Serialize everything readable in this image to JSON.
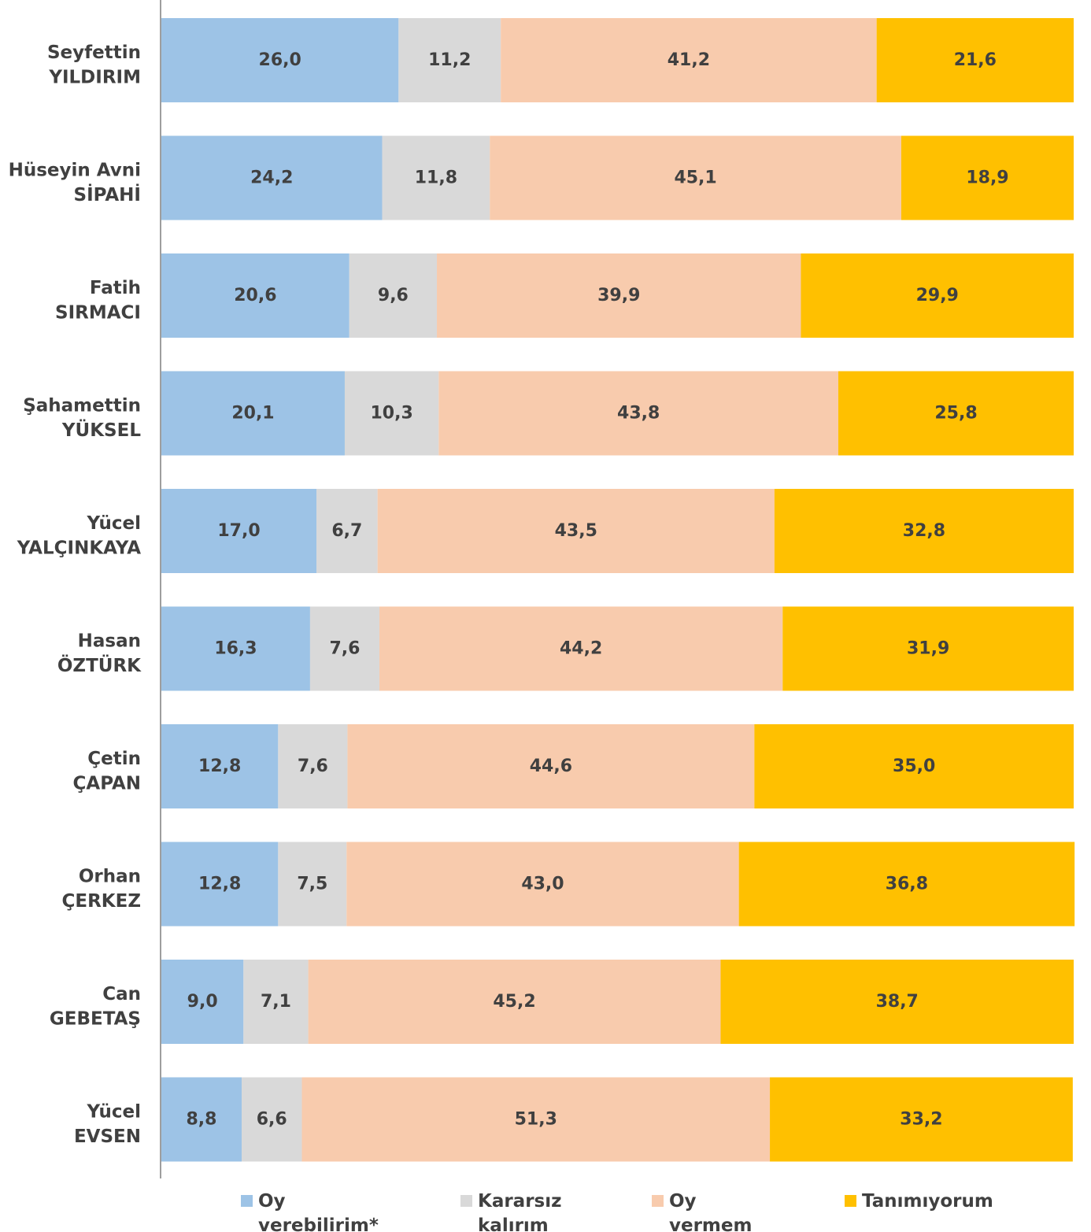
{
  "chart_data": {
    "type": "bar",
    "orientation": "horizontal",
    "stacked": true,
    "title": "",
    "xlabel": "",
    "ylabel": "",
    "xlim": [
      0,
      100
    ],
    "grid": false,
    "legend_position": "bottom",
    "categories": [
      [
        "Seyfettin",
        "YILDIRIM"
      ],
      [
        "Hüseyin Avni",
        "SİPAHİ"
      ],
      [
        "Fatih",
        "SIRMACI"
      ],
      [
        "Şahamettin",
        "YÜKSEL"
      ],
      [
        "Yücel",
        "YALÇINKAYA"
      ],
      [
        "Hasan",
        "ÖZTÜRK"
      ],
      [
        "Çetin",
        "ÇAPAN"
      ],
      [
        "Orhan",
        "ÇERKEZ"
      ],
      [
        "Can",
        "GEBETAŞ"
      ],
      [
        "Yücel",
        "EVSEN"
      ]
    ],
    "series": [
      {
        "name": [
          "Oy",
          "verebilirim*"
        ],
        "color": "#9DC3E6",
        "values": [
          26.0,
          24.2,
          20.6,
          20.1,
          17.0,
          16.3,
          12.8,
          12.8,
          9.0,
          8.8
        ],
        "labels": [
          "26,0",
          "24,2",
          "20,6",
          "20,1",
          "17,0",
          "16,3",
          "12,8",
          "12,8",
          "9,0",
          "8,8"
        ]
      },
      {
        "name": [
          "Kararsız",
          "kalırım"
        ],
        "color": "#D9D9D9",
        "values": [
          11.2,
          11.8,
          9.6,
          10.3,
          6.7,
          7.6,
          7.6,
          7.5,
          7.1,
          6.6
        ],
        "labels": [
          "11,2",
          "11,8",
          "9,6",
          "10,3",
          "6,7",
          "7,6",
          "7,6",
          "7,5",
          "7,1",
          "6,6"
        ]
      },
      {
        "name": [
          "Oy",
          "vermem"
        ],
        "color": "#F8CBAD",
        "values": [
          41.2,
          45.1,
          39.9,
          43.8,
          43.5,
          44.2,
          44.6,
          43.0,
          45.2,
          51.3
        ],
        "labels": [
          "41,2",
          "45,1",
          "39,9",
          "43,8",
          "43,5",
          "44,2",
          "44,6",
          "43,0",
          "45,2",
          "51,3"
        ]
      },
      {
        "name": [
          "Tanımıyorum"
        ],
        "color": "#FFC000",
        "values": [
          21.6,
          18.9,
          29.9,
          25.8,
          32.8,
          31.9,
          35.0,
          36.8,
          38.7,
          33.2
        ],
        "labels": [
          "21,6",
          "18,9",
          "29,9",
          "25,8",
          "32,8",
          "31,9",
          "35,0",
          "36,8",
          "38,7",
          "33,2"
        ]
      }
    ]
  }
}
